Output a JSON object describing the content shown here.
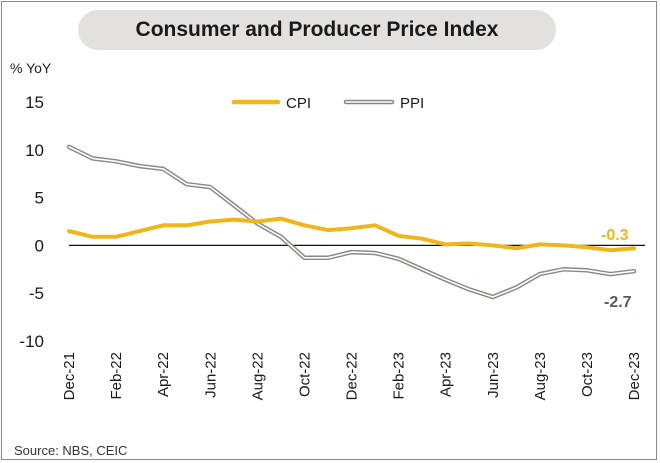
{
  "title": "Consumer and Producer Price Index",
  "unit_label": "% YoY",
  "source": "Source:  NBS, CEIC",
  "colors": {
    "cpi": "#f0b619",
    "ppi_outer": "#8f8783",
    "ppi_inner": "#ffffff",
    "ppi_label": "#5f5753",
    "zero_line": "#111111"
  },
  "chart_data": {
    "type": "line",
    "title": "Consumer and Producer Price Index",
    "ylabel": "% YoY",
    "ylim": [
      -10,
      15
    ],
    "yticks": [
      15,
      10,
      5,
      0,
      -5,
      -10
    ],
    "x": [
      "Dec-21",
      "Jan-22",
      "Feb-22",
      "Mar-22",
      "Apr-22",
      "May-22",
      "Jun-22",
      "Jul-22",
      "Aug-22",
      "Sep-22",
      "Oct-22",
      "Nov-22",
      "Dec-22",
      "Jan-23",
      "Feb-23",
      "Mar-23",
      "Apr-23",
      "May-23",
      "Jun-23",
      "Jul-23",
      "Aug-23",
      "Sep-23",
      "Oct-23",
      "Nov-23",
      "Dec-23"
    ],
    "xticks": [
      "Dec-21",
      "Feb-22",
      "Apr-22",
      "Jun-22",
      "Aug-22",
      "Oct-22",
      "Dec-22",
      "Feb-23",
      "Apr-23",
      "Jun-23",
      "Aug-23",
      "Oct-23",
      "Dec-23"
    ],
    "legend_position": "top-center",
    "series": [
      {
        "name": "CPI",
        "style": "solid",
        "values": [
          1.5,
          0.9,
          0.9,
          1.5,
          2.1,
          2.1,
          2.5,
          2.7,
          2.5,
          2.8,
          2.1,
          1.6,
          1.8,
          2.1,
          1.0,
          0.7,
          0.1,
          0.2,
          0.0,
          -0.3,
          0.1,
          0.0,
          -0.2,
          -0.5,
          -0.3
        ],
        "end_label": "-0.3"
      },
      {
        "name": "PPI",
        "style": "double",
        "values": [
          10.3,
          9.1,
          8.8,
          8.3,
          8.0,
          6.4,
          6.1,
          4.2,
          2.3,
          0.9,
          -1.3,
          -1.3,
          -0.7,
          -0.8,
          -1.4,
          -2.5,
          -3.6,
          -4.6,
          -5.4,
          -4.4,
          -3.0,
          -2.5,
          -2.6,
          -3.0,
          -2.7
        ],
        "end_label": "-2.7"
      }
    ]
  }
}
